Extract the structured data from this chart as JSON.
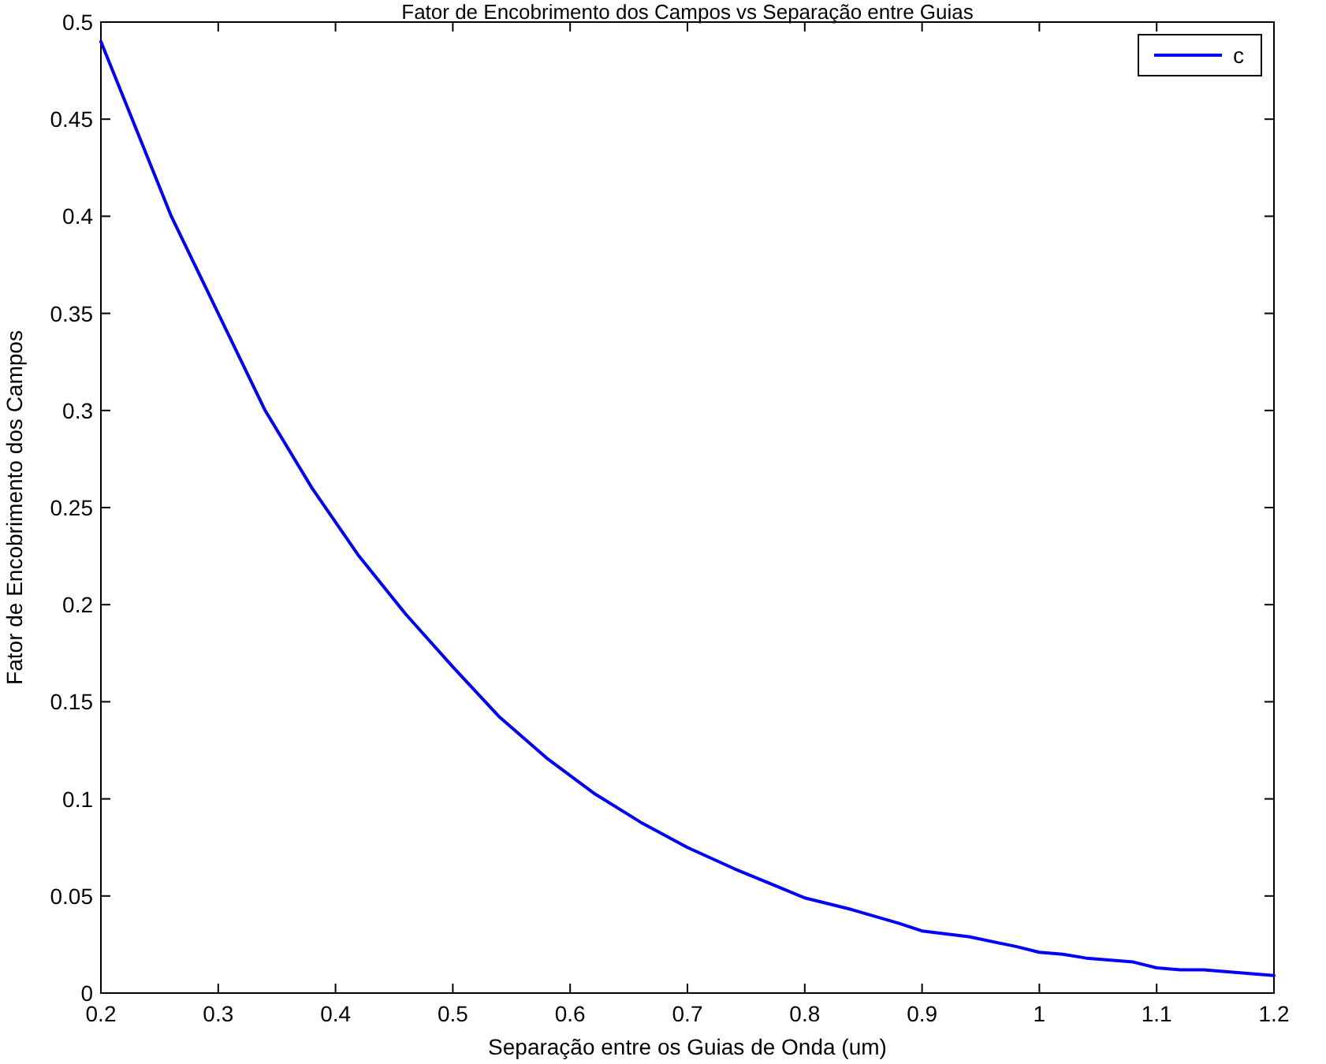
{
  "chart_data": {
    "type": "line",
    "title": "Fator de Encobrimento dos Campos vs Separação entre Guias",
    "xlabel": "Separação entre os Guias de Onda (um)",
    "ylabel": "Fator de Encobrimento dos Campos",
    "x": [
      0.2,
      0.22,
      0.26,
      0.3,
      0.34,
      0.38,
      0.42,
      0.46,
      0.5,
      0.54,
      0.58,
      0.62,
      0.66,
      0.7,
      0.74,
      0.78,
      0.8,
      0.84,
      0.88,
      0.9,
      0.94,
      0.98,
      1.0,
      1.02,
      1.04,
      1.08,
      1.1,
      1.12,
      1.14,
      1.2
    ],
    "series": [
      {
        "name": "c",
        "color": "#0000ff",
        "values": [
          0.49,
          0.46,
          0.4,
          0.35,
          0.3,
          0.26,
          0.225,
          0.195,
          0.168,
          0.142,
          0.121,
          0.103,
          0.088,
          0.075,
          0.064,
          0.054,
          0.049,
          0.043,
          0.036,
          0.032,
          0.029,
          0.024,
          0.021,
          0.02,
          0.018,
          0.016,
          0.013,
          0.012,
          0.012,
          0.009
        ]
      }
    ],
    "xlim": [
      0.2,
      1.2
    ],
    "xticks": [
      {
        "value": 0.2,
        "label": "0.2"
      },
      {
        "value": 0.3,
        "label": "0.3"
      },
      {
        "value": 0.4,
        "label": "0.4"
      },
      {
        "value": 0.5,
        "label": "0.5"
      },
      {
        "value": 0.6,
        "label": "0.6"
      },
      {
        "value": 0.7,
        "label": "0.7"
      },
      {
        "value": 0.8,
        "label": "0.8"
      },
      {
        "value": 0.9,
        "label": "0.9"
      },
      1,
      {
        "value": 1.1,
        "label": "1.1"
      },
      {
        "value": 1.2,
        "label": "1.2"
      }
    ],
    "ylim": [
      0,
      0.5
    ],
    "yticks": [
      0,
      {
        "value": 0.05,
        "label": "0.05"
      },
      {
        "value": 0.1,
        "label": "0.1"
      },
      {
        "value": 0.15,
        "label": "0.15"
      },
      {
        "value": 0.2,
        "label": "0.2"
      },
      {
        "value": 0.25,
        "label": "0.25"
      },
      {
        "value": 0.3,
        "label": "0.3"
      },
      {
        "value": 0.35,
        "label": "0.35"
      },
      {
        "value": 0.4,
        "label": "0.4"
      },
      {
        "value": 0.45,
        "label": "0.45"
      },
      {
        "value": 0.5,
        "label": "0.5"
      }
    ],
    "legend": "top right",
    "grid": false,
    "line_style": "solid",
    "marker": "none"
  }
}
